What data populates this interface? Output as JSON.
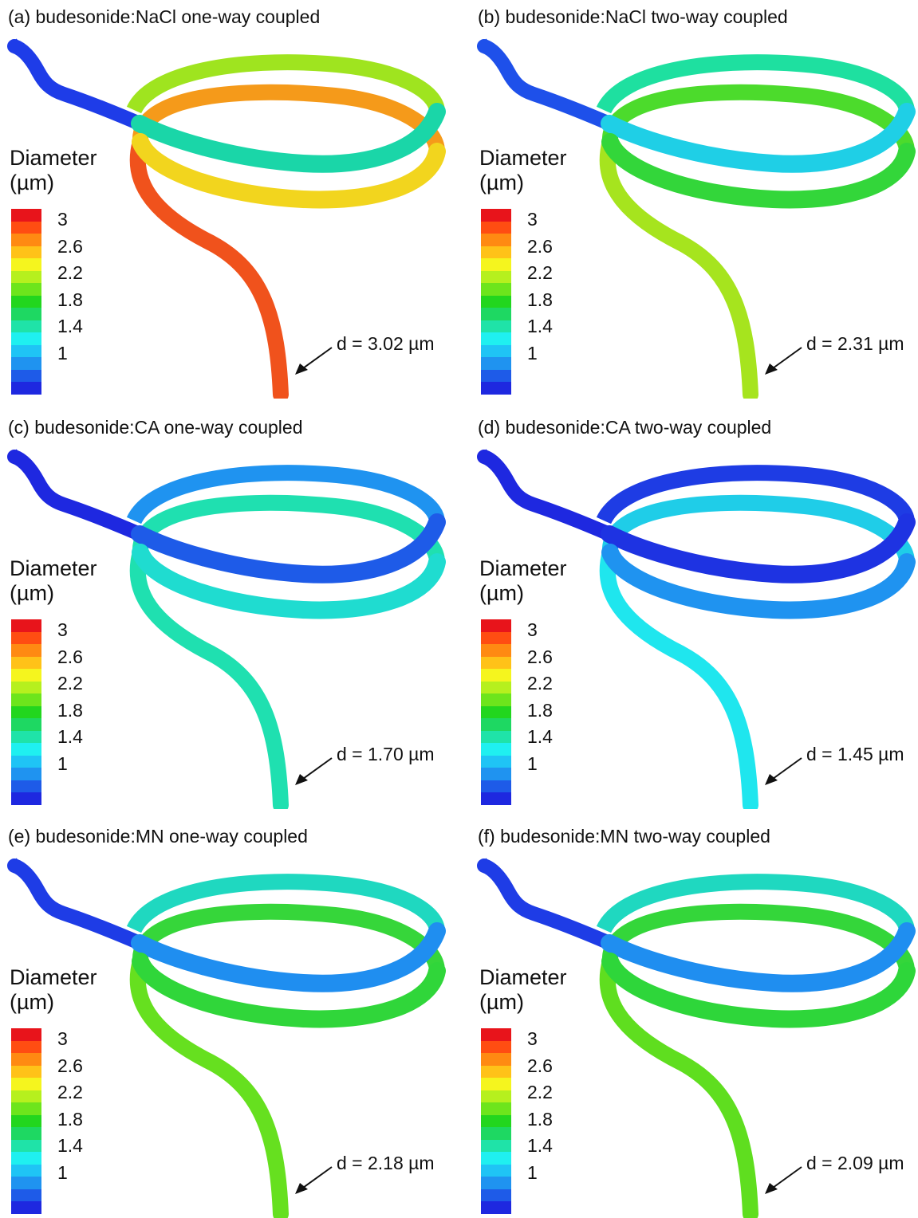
{
  "legend": {
    "title_line1": "Diameter",
    "title_line2": "(µm)",
    "ticks": [
      "3",
      "2.6",
      "2.2",
      "1.8",
      "1.4",
      "1"
    ],
    "colormap": [
      "#e8141b",
      "#ff4d12",
      "#ff8a12",
      "#ffc218",
      "#f5f51e",
      "#b6f01e",
      "#6de51c",
      "#22d61e",
      "#1ed862",
      "#1fe3a8",
      "#1ff0f0",
      "#1fc4f5",
      "#1f93f0",
      "#1e5be8",
      "#1e28e0"
    ]
  },
  "panels": [
    {
      "title": "(a) budesonide:NaCl one-way coupled",
      "annotation": "d = 3.02 µm",
      "colors": {
        "inlet": "#1e3ce8",
        "upper_loop": "#1ad6a8",
        "upper_back": "#9fe41f",
        "lower_loop": "#f2d51e",
        "lower_back": "#f59a1a",
        "outlet": "#f0521c"
      }
    },
    {
      "title": "(b)  budesonide:NaCl two-way coupled",
      "annotation": "d = 2.31 µm",
      "colors": {
        "inlet": "#1e50ea",
        "upper_loop": "#1fcfe6",
        "upper_back": "#1ee0a0",
        "lower_loop": "#33d63a",
        "lower_back": "#4cdb2c",
        "outlet": "#a6e41e"
      }
    },
    {
      "title": "(c)  budesonide:CA one-way coupled",
      "annotation": "d = 1.70 µm",
      "colors": {
        "inlet": "#1e28e0",
        "upper_loop": "#1e5be8",
        "upper_back": "#1f93f0",
        "lower_loop": "#1fdcd0",
        "lower_back": "#1fe0b0",
        "outlet": "#1fe0b0"
      }
    },
    {
      "title": "(d)  budesonide:CA two-way coupled",
      "annotation": "d = 1.45 µm",
      "colors": {
        "inlet": "#1e28e0",
        "upper_loop": "#1e33e2",
        "upper_back": "#1e3ce4",
        "lower_loop": "#1f93f0",
        "lower_back": "#1fcde8",
        "outlet": "#1fe6ee"
      }
    },
    {
      "title": "(e)  budesonide:MN one-way coupled",
      "annotation": "d = 2.18 µm",
      "colors": {
        "inlet": "#1e3ce6",
        "upper_loop": "#1f8ef0",
        "upper_back": "#1fd8c0",
        "lower_loop": "#30d63a",
        "lower_back": "#36d63a",
        "outlet": "#66e01f"
      }
    },
    {
      "title": "(f)  budesonide:MN two-way coupled",
      "annotation": "d = 2.09 µm",
      "colors": {
        "inlet": "#1e3ce6",
        "upper_loop": "#1f8ef0",
        "upper_back": "#1fd8c0",
        "lower_loop": "#2ed63a",
        "lower_back": "#34d63a",
        "outlet": "#5fde1f"
      }
    }
  ]
}
